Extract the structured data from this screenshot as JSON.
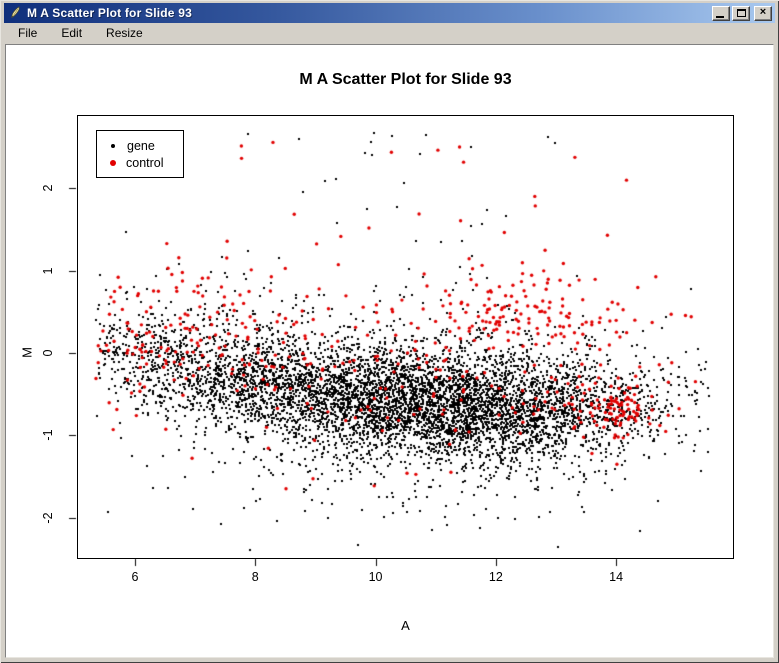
{
  "window": {
    "title": "M A Scatter Plot for Slide 93",
    "controls": {
      "minimize": "minimize",
      "maximize": "maximize",
      "close": "close"
    }
  },
  "menu": {
    "items": [
      "File",
      "Edit",
      "Resize"
    ]
  },
  "chart_data": {
    "type": "scatter",
    "title": "M A Scatter Plot for Slide 93",
    "xlabel": "A",
    "ylabel": "M",
    "xlim": [
      5.036,
      15.943
    ],
    "ylim": [
      -2.485,
      2.885
    ],
    "x_ticks": [
      6,
      8,
      10,
      12,
      14
    ],
    "y_ticks": [
      -2,
      -1,
      0,
      1,
      2
    ],
    "grid": false,
    "legend": {
      "position": "top-left",
      "entries": [
        {
          "label": "gene",
          "color": "#000000"
        },
        {
          "label": "control",
          "color": "#e10000"
        }
      ]
    },
    "series": [
      {
        "name": "gene",
        "color": "#000000",
        "marker": "square",
        "marker_px": 2,
        "n": 6322,
        "generator": {
          "seed": 1234567,
          "a_mixture": [
            {
              "w": 0.6,
              "mean": 11.5,
              "sd": 1.65
            },
            {
              "w": 0.4,
              "mean": 8.4,
              "sd": 1.95
            }
          ],
          "a_range": [
            5.35,
            15.6
          ],
          "m_curve": {
            "base": -0.68,
            "quad": 0.0135,
            "center": 12.8
          },
          "m_noise": [
            {
              "w": 0.87,
              "sd": 0.33
            },
            {
              "w": 0.13,
              "sd": 0.72
            }
          ],
          "m_range": [
            -2.4,
            2.85
          ],
          "outliers": {
            "n": 22,
            "a_mean": 10.6,
            "a_sd": 1.9,
            "m_min": 1.3,
            "m_max": 2.78
          }
        }
      },
      {
        "name": "control",
        "color": "#e10000",
        "marker": "circle",
        "marker_px": 3,
        "n": 585,
        "generator": {
          "seed": 424242,
          "clusters": [
            {
              "n": 160,
              "a_mean": 6.8,
              "a_sd": 1.0,
              "m_mean": 0.18,
              "m_sd": 0.4
            },
            {
              "n": 100,
              "a_mean": 10.2,
              "a_sd": 1.2,
              "m_mean": -0.1,
              "m_sd": 0.42
            },
            {
              "n": 150,
              "a_mean": 12.5,
              "a_sd": 1.1,
              "m_mean": 0.5,
              "m_sd": 0.3
            },
            {
              "n": 85,
              "a_mean": 14.05,
              "a_sd": 0.33,
              "m_mean": -0.7,
              "m_sd": 0.16
            },
            {
              "n": 55,
              "a_mean": 13.3,
              "a_sd": 0.8,
              "m_mean": -0.55,
              "m_sd": 0.3
            },
            {
              "n": 14,
              "a_mean": 9.2,
              "a_sd": 2.0,
              "m_mean": -1.1,
              "m_sd": 0.35
            },
            {
              "n": 21,
              "uniform": true,
              "a_min": 7.3,
              "a_max": 14.2,
              "m_min": 1.1,
              "m_max": 2.65
            }
          ],
          "a_range": [
            5.35,
            15.6
          ],
          "m_range": [
            -2.4,
            2.85
          ]
        }
      }
    ]
  }
}
